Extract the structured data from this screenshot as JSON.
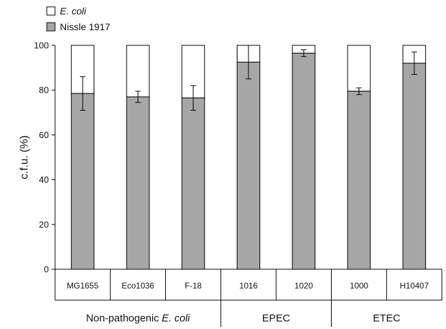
{
  "chart_data": {
    "type": "bar",
    "stacked": true,
    "title": "",
    "ylabel": "c.f.u. (%)",
    "xlabel": "",
    "ylim": [
      0,
      100
    ],
    "yticks": [
      0,
      20,
      40,
      60,
      80,
      100
    ],
    "grid": false,
    "legend_position": "top-left",
    "categories": [
      "MG1655",
      "Eco1036",
      "F-18",
      "1016",
      "1020",
      "1000",
      "H10407"
    ],
    "groups": [
      {
        "label": "Non-pathogenic E. coli",
        "label_prefix": "Non-pathogenic ",
        "label_italic": "E. coli",
        "categories": [
          "MG1655",
          "Eco1036",
          "F-18"
        ]
      },
      {
        "label": "EPEC",
        "label_prefix": "EPEC",
        "label_italic": "",
        "categories": [
          "1016",
          "1020"
        ]
      },
      {
        "label": "ETEC",
        "label_prefix": "ETEC",
        "label_italic": "",
        "categories": [
          "1000",
          "H10407"
        ]
      }
    ],
    "series": [
      {
        "name": "Nissle 1917",
        "color": "#a6a6a6",
        "values": [
          78.5,
          77,
          76.5,
          92.5,
          96.5,
          79.5,
          92
        ],
        "error": [
          7.5,
          2.5,
          5.5,
          7.5,
          1.5,
          1.5,
          5
        ]
      },
      {
        "name": "E. coli",
        "italic": true,
        "color": "#ffffff",
        "values": [
          21.5,
          23,
          23.5,
          7.5,
          3.5,
          20.5,
          8
        ]
      }
    ]
  }
}
